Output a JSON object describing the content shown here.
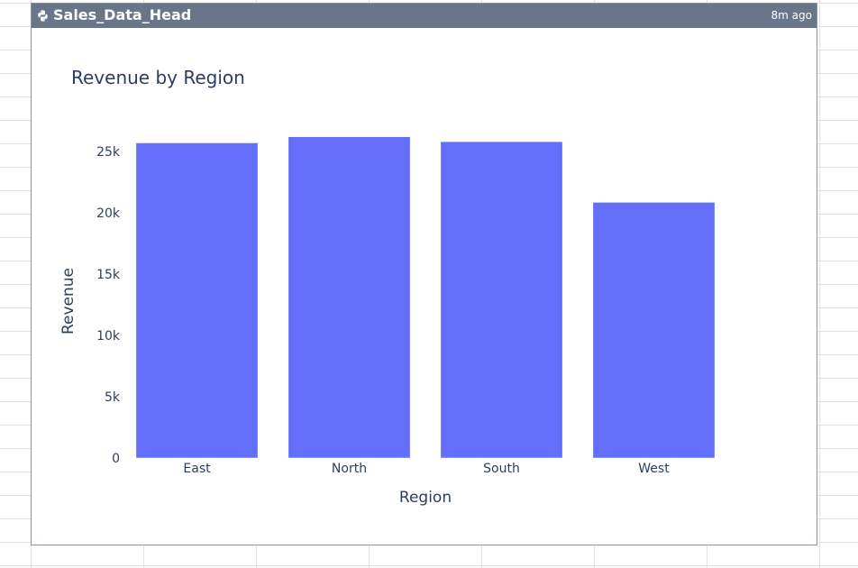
{
  "card": {
    "title": "Sales_Data_Head",
    "timestamp": "8m ago",
    "icon": "python-icon"
  },
  "colors": {
    "header_bg": "#687689",
    "bar": "#636efa",
    "text": "#2a3f5f"
  },
  "chart_data": {
    "type": "bar",
    "title": "Revenue by Region",
    "xlabel": "Region",
    "ylabel": "Revenue",
    "categories": [
      "East",
      "North",
      "South",
      "West"
    ],
    "values": [
      25700,
      26200,
      25800,
      20850
    ],
    "ylim": [
      0,
      27500
    ],
    "yticks": [
      0,
      5000,
      10000,
      15000,
      20000,
      25000
    ],
    "ytick_labels": [
      "0",
      "5k",
      "10k",
      "15k",
      "20k",
      "25k"
    ],
    "grid": false,
    "legend": "none"
  }
}
